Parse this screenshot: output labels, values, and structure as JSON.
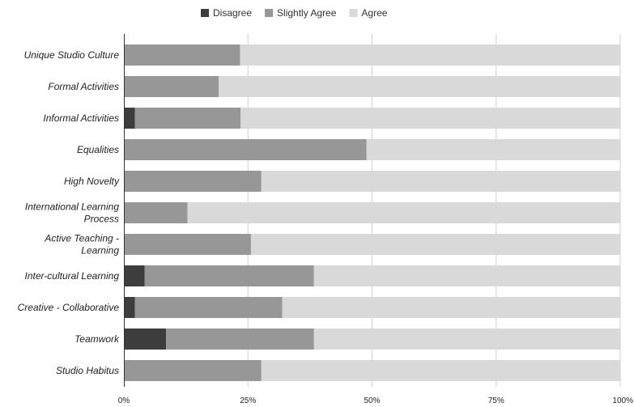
{
  "chart_data": {
    "type": "bar",
    "orientation": "horizontal",
    "stacked": "percent",
    "categories": [
      "Unique Studio Culture",
      "Formal Activities",
      "Informal Activities",
      "Equalities",
      "High Novelty",
      "International Learning Process",
      "Active Teaching - Learning",
      "Inter-cultural Learning",
      "Creative - Collaborative",
      "Teamwork",
      "Studio Habitus"
    ],
    "category_lines": [
      [
        "Unique Studio Culture"
      ],
      [
        "Formal Activities"
      ],
      [
        "Informal Activities"
      ],
      [
        "Equalities"
      ],
      [
        "High Novelty"
      ],
      [
        "International Learning",
        "Process"
      ],
      [
        "Active Teaching -",
        "Learning"
      ],
      [
        "Inter-cultural Learning"
      ],
      [
        "Creative - Collaborative"
      ],
      [
        "Teamwork"
      ],
      [
        "Studio Habitus"
      ]
    ],
    "series": [
      {
        "name": "Disagree",
        "color": "#3d3d3d",
        "values": [
          0,
          0,
          2.2,
          0,
          0,
          0,
          0,
          4.2,
          2.2,
          8.5,
          0
        ]
      },
      {
        "name": "Slightly Agree",
        "color": "#979797",
        "values": [
          23.4,
          19.1,
          21.3,
          48.9,
          27.7,
          12.8,
          25.6,
          34.1,
          29.7,
          29.8,
          27.7
        ]
      },
      {
        "name": "Agree",
        "color": "#d9d9d9",
        "values": [
          76.6,
          80.9,
          76.5,
          51.1,
          72.3,
          87.2,
          74.4,
          61.7,
          68.1,
          61.7,
          72.3
        ]
      }
    ],
    "x_ticks": [
      "0%",
      "25%",
      "50%",
      "75%",
      "100%"
    ],
    "xlim": [
      0,
      100
    ],
    "grid": true,
    "legend_position": "top"
  }
}
